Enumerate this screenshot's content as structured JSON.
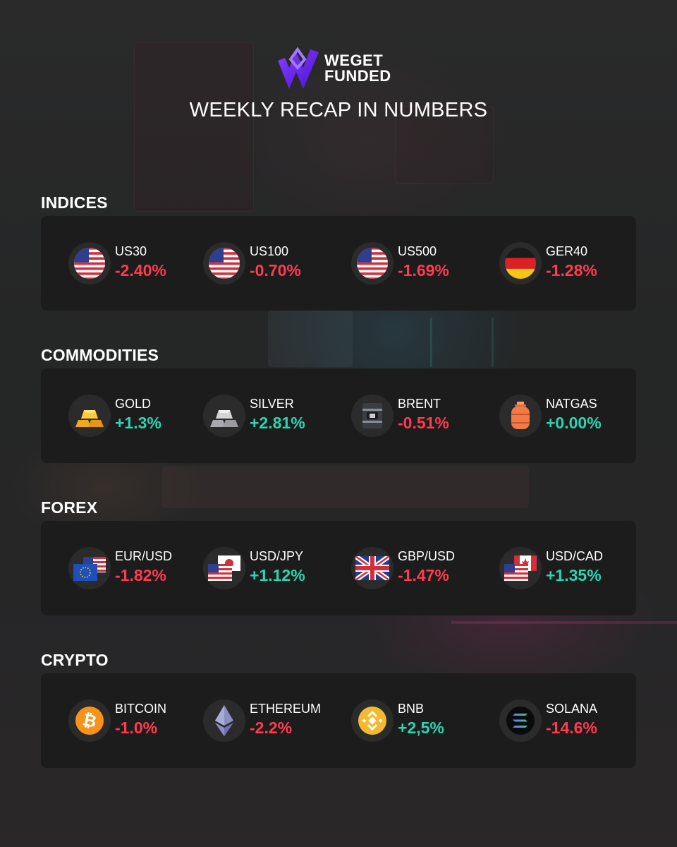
{
  "brand": {
    "logo_line1": "WEGET",
    "logo_line2": "FUNDED",
    "accent_color": "#6b2cf5"
  },
  "title": "WEEKLY RECAP IN NUMBERS",
  "colors": {
    "negative": "#ff3b4e",
    "positive": "#2ed3b0"
  },
  "sections": [
    {
      "title": "INDICES",
      "items": [
        {
          "label": "US30",
          "value": "-2.40%",
          "icon": "us-flag-icon",
          "trend": "negative"
        },
        {
          "label": "US100",
          "value": "-0.70%",
          "icon": "us-flag-icon",
          "trend": "negative"
        },
        {
          "label": "US500",
          "value": "-1.69%",
          "icon": "us-flag-icon",
          "trend": "negative"
        },
        {
          "label": "GER40",
          "value": "-1.28%",
          "icon": "germany-flag-icon",
          "trend": "negative"
        }
      ]
    },
    {
      "title": "COMMODITIES",
      "items": [
        {
          "label": "GOLD",
          "value": "+1.3%",
          "icon": "gold-bars-icon",
          "trend": "positive"
        },
        {
          "label": "SILVER",
          "value": "+2.81%",
          "icon": "silver-bars-icon",
          "trend": "positive"
        },
        {
          "label": "BRENT",
          "value": "-0.51%",
          "icon": "oil-barrel-icon",
          "trend": "negative"
        },
        {
          "label": "NATGAS",
          "value": "+0.00%",
          "icon": "gas-cylinder-icon",
          "trend": "positive"
        }
      ]
    },
    {
      "title": "FOREX",
      "items": [
        {
          "label": "EUR/USD",
          "value": "-1.82%",
          "icon": "eu-us-flags-icon",
          "trend": "negative"
        },
        {
          "label": "USD/JPY",
          "value": "+1.12%",
          "icon": "us-japan-flags-icon",
          "trend": "positive"
        },
        {
          "label": "GBP/USD",
          "value": "-1.47%",
          "icon": "uk-flag-icon",
          "trend": "negative"
        },
        {
          "label": "USD/CAD",
          "value": "+1.35%",
          "icon": "us-canada-flags-icon",
          "trend": "positive"
        }
      ]
    },
    {
      "title": "CRYPTO",
      "items": [
        {
          "label": "BITCOIN",
          "value": "-1.0%",
          "icon": "bitcoin-icon",
          "trend": "negative"
        },
        {
          "label": "ETHEREUM",
          "value": "-2.2%",
          "icon": "ethereum-icon",
          "trend": "negative"
        },
        {
          "label": "BNB",
          "value": "+2,5%",
          "icon": "bnb-icon",
          "trend": "positive"
        },
        {
          "label": "SOLANA",
          "value": "-14.6%",
          "icon": "solana-icon",
          "trend": "negative"
        }
      ]
    }
  ]
}
